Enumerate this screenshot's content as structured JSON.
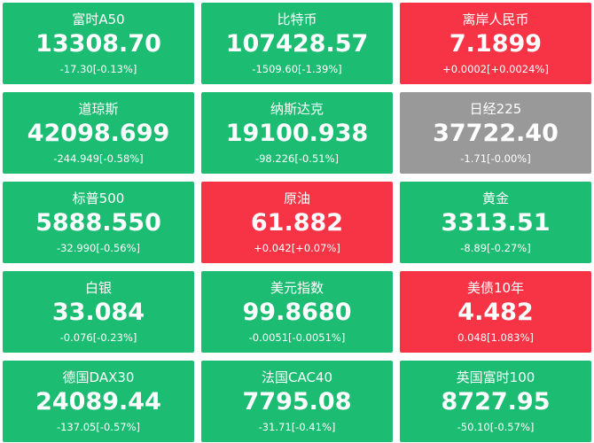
{
  "colors": {
    "up": "#1cbd72",
    "down": "#f63445",
    "flat": "#999999",
    "text": "#ffffff"
  },
  "tiles": [
    {
      "name": "富时A50",
      "price": "13308.70",
      "change": "-17.30[-0.13%]",
      "status": "up"
    },
    {
      "name": "比特币",
      "price": "107428.57",
      "change": "-1509.60[-1.39%]",
      "status": "up"
    },
    {
      "name": "离岸人民币",
      "price": "7.1899",
      "change": "+0.0002[+0.0024%]",
      "status": "down"
    },
    {
      "name": "道琼斯",
      "price": "42098.699",
      "change": "-244.949[-0.58%]",
      "status": "up"
    },
    {
      "name": "纳斯达克",
      "price": "19100.938",
      "change": "-98.226[-0.51%]",
      "status": "up"
    },
    {
      "name": "日经225",
      "price": "37722.40",
      "change": "-1.71[-0.00%]",
      "status": "flat"
    },
    {
      "name": "标普500",
      "price": "5888.550",
      "change": "-32.990[-0.56%]",
      "status": "up"
    },
    {
      "name": "原油",
      "price": "61.882",
      "change": "+0.042[+0.07%]",
      "status": "down"
    },
    {
      "name": "黄金",
      "price": "3313.51",
      "change": "-8.89[-0.27%]",
      "status": "up"
    },
    {
      "name": "白银",
      "price": "33.084",
      "change": "-0.076[-0.23%]",
      "status": "up"
    },
    {
      "name": "美元指数",
      "price": "99.8680",
      "change": "-0.0051[-0.0051%]",
      "status": "up"
    },
    {
      "name": "美债10年",
      "price": "4.482",
      "change": "0.048[1.083%]",
      "status": "down"
    },
    {
      "name": "德国DAX30",
      "price": "24089.44",
      "change": "-137.05[-0.57%]",
      "status": "up"
    },
    {
      "name": "法国CAC40",
      "price": "7795.08",
      "change": "-31.71[-0.41%]",
      "status": "up"
    },
    {
      "name": "英国富时100",
      "price": "8727.95",
      "change": "-50.10[-0.57%]",
      "status": "up"
    }
  ]
}
